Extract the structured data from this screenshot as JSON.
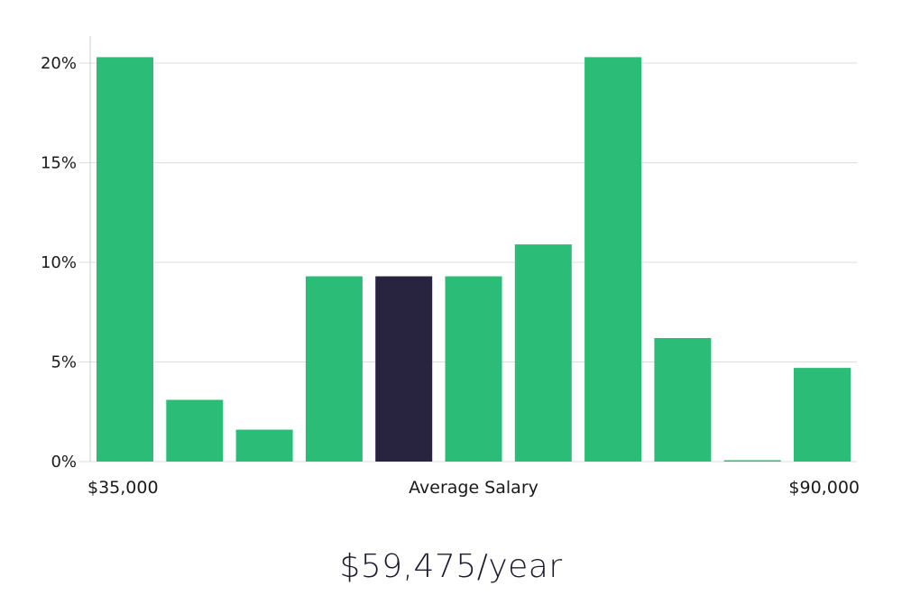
{
  "chart_data": {
    "type": "bar",
    "title": "",
    "xlabel": "Average Salary",
    "ylabel": "",
    "x_range_labels": {
      "min": "$35,000",
      "max": "$90,000"
    },
    "y_ticks": [
      0,
      5,
      10,
      15,
      20
    ],
    "y_tick_labels": [
      "0%",
      "5%",
      "10%",
      "15%",
      "20%"
    ],
    "ylim": [
      0,
      21.5
    ],
    "values": [
      20.3,
      3.1,
      1.6,
      9.3,
      9.3,
      9.3,
      10.9,
      20.3,
      6.2,
      0.05,
      4.7
    ],
    "highlight_index": 4,
    "colors": {
      "bar": "#2bbd78",
      "highlight": "#28233f"
    },
    "grid": true
  },
  "salary": {
    "display": "$59,475/year"
  }
}
